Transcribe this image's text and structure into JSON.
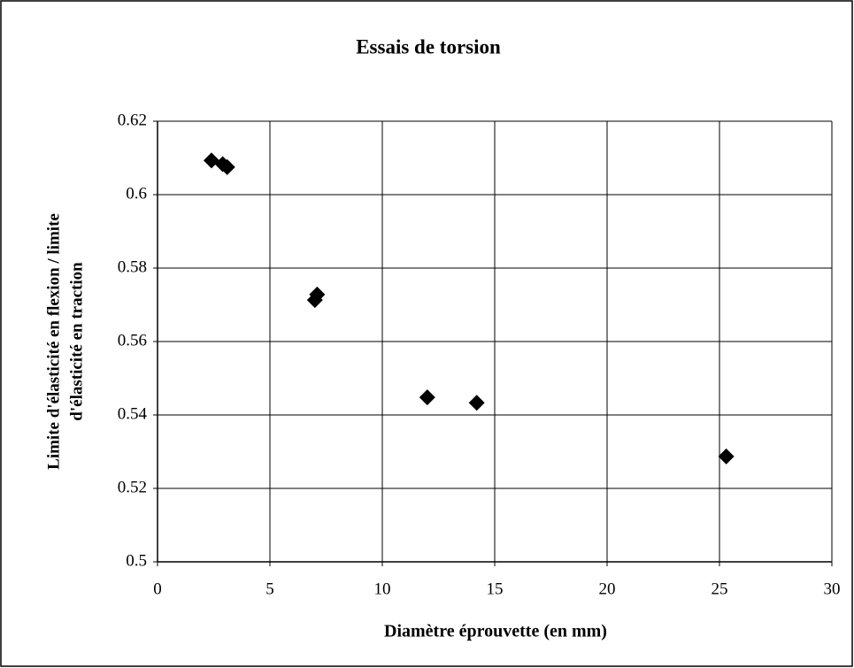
{
  "chart_data": {
    "type": "scatter",
    "title": "Essais de torsion",
    "xlabel": "Diamètre éprouvette (en mm)",
    "ylabel": [
      "Limite d'élasticité en flexion / limite",
      "d'élasticité en traction"
    ],
    "series": [
      {
        "color": "#000000",
        "x": [
          2.4,
          2.9,
          3.1,
          7.0,
          7.1,
          12.0,
          14.2,
          25.3
        ],
        "values": [
          0.6093,
          0.6083,
          0.6075,
          0.5713,
          0.5728,
          0.5448,
          0.5433,
          0.5287
        ]
      }
    ],
    "xlim": [
      0,
      30
    ],
    "xticks": [
      0,
      5,
      10,
      15,
      20,
      25,
      30
    ],
    "ylim": [
      0.5,
      0.62
    ],
    "yticks": [
      0.5,
      0.52,
      0.54,
      0.56,
      0.58,
      0.6,
      0.62
    ],
    "grid": true
  }
}
